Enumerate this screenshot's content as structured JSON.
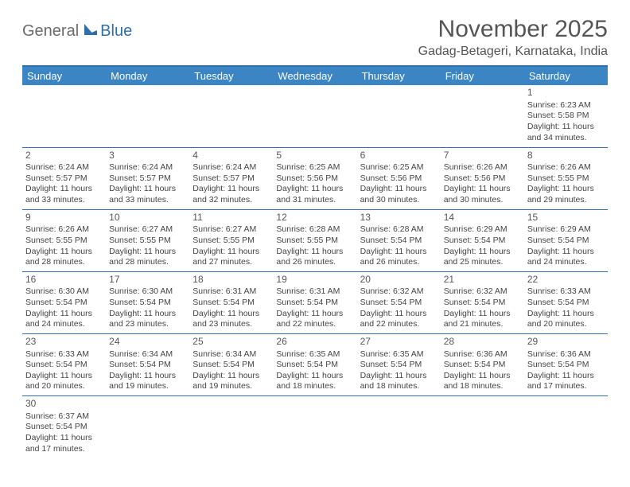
{
  "logo": {
    "part1": "General",
    "part2": "Blue"
  },
  "title": "November 2025",
  "location": "Gadag-Betageri, Karnataka, India",
  "colors": {
    "header_bg": "#3b85c4",
    "border": "#2f6fa8",
    "logo_gray": "#6b6b6b",
    "logo_blue": "#2f6fa8",
    "text": "#444"
  },
  "dayNames": [
    "Sunday",
    "Monday",
    "Tuesday",
    "Wednesday",
    "Thursday",
    "Friday",
    "Saturday"
  ],
  "weeks": [
    [
      null,
      null,
      null,
      null,
      null,
      null,
      {
        "d": "1",
        "sr": "6:23 AM",
        "ss": "5:58 PM",
        "dl": "11 hours and 34 minutes."
      }
    ],
    [
      {
        "d": "2",
        "sr": "6:24 AM",
        "ss": "5:57 PM",
        "dl": "11 hours and 33 minutes."
      },
      {
        "d": "3",
        "sr": "6:24 AM",
        "ss": "5:57 PM",
        "dl": "11 hours and 33 minutes."
      },
      {
        "d": "4",
        "sr": "6:24 AM",
        "ss": "5:57 PM",
        "dl": "11 hours and 32 minutes."
      },
      {
        "d": "5",
        "sr": "6:25 AM",
        "ss": "5:56 PM",
        "dl": "11 hours and 31 minutes."
      },
      {
        "d": "6",
        "sr": "6:25 AM",
        "ss": "5:56 PM",
        "dl": "11 hours and 30 minutes."
      },
      {
        "d": "7",
        "sr": "6:26 AM",
        "ss": "5:56 PM",
        "dl": "11 hours and 30 minutes."
      },
      {
        "d": "8",
        "sr": "6:26 AM",
        "ss": "5:55 PM",
        "dl": "11 hours and 29 minutes."
      }
    ],
    [
      {
        "d": "9",
        "sr": "6:26 AM",
        "ss": "5:55 PM",
        "dl": "11 hours and 28 minutes."
      },
      {
        "d": "10",
        "sr": "6:27 AM",
        "ss": "5:55 PM",
        "dl": "11 hours and 28 minutes."
      },
      {
        "d": "11",
        "sr": "6:27 AM",
        "ss": "5:55 PM",
        "dl": "11 hours and 27 minutes."
      },
      {
        "d": "12",
        "sr": "6:28 AM",
        "ss": "5:55 PM",
        "dl": "11 hours and 26 minutes."
      },
      {
        "d": "13",
        "sr": "6:28 AM",
        "ss": "5:54 PM",
        "dl": "11 hours and 26 minutes."
      },
      {
        "d": "14",
        "sr": "6:29 AM",
        "ss": "5:54 PM",
        "dl": "11 hours and 25 minutes."
      },
      {
        "d": "15",
        "sr": "6:29 AM",
        "ss": "5:54 PM",
        "dl": "11 hours and 24 minutes."
      }
    ],
    [
      {
        "d": "16",
        "sr": "6:30 AM",
        "ss": "5:54 PM",
        "dl": "11 hours and 24 minutes."
      },
      {
        "d": "17",
        "sr": "6:30 AM",
        "ss": "5:54 PM",
        "dl": "11 hours and 23 minutes."
      },
      {
        "d": "18",
        "sr": "6:31 AM",
        "ss": "5:54 PM",
        "dl": "11 hours and 23 minutes."
      },
      {
        "d": "19",
        "sr": "6:31 AM",
        "ss": "5:54 PM",
        "dl": "11 hours and 22 minutes."
      },
      {
        "d": "20",
        "sr": "6:32 AM",
        "ss": "5:54 PM",
        "dl": "11 hours and 22 minutes."
      },
      {
        "d": "21",
        "sr": "6:32 AM",
        "ss": "5:54 PM",
        "dl": "11 hours and 21 minutes."
      },
      {
        "d": "22",
        "sr": "6:33 AM",
        "ss": "5:54 PM",
        "dl": "11 hours and 20 minutes."
      }
    ],
    [
      {
        "d": "23",
        "sr": "6:33 AM",
        "ss": "5:54 PM",
        "dl": "11 hours and 20 minutes."
      },
      {
        "d": "24",
        "sr": "6:34 AM",
        "ss": "5:54 PM",
        "dl": "11 hours and 19 minutes."
      },
      {
        "d": "25",
        "sr": "6:34 AM",
        "ss": "5:54 PM",
        "dl": "11 hours and 19 minutes."
      },
      {
        "d": "26",
        "sr": "6:35 AM",
        "ss": "5:54 PM",
        "dl": "11 hours and 18 minutes."
      },
      {
        "d": "27",
        "sr": "6:35 AM",
        "ss": "5:54 PM",
        "dl": "11 hours and 18 minutes."
      },
      {
        "d": "28",
        "sr": "6:36 AM",
        "ss": "5:54 PM",
        "dl": "11 hours and 18 minutes."
      },
      {
        "d": "29",
        "sr": "6:36 AM",
        "ss": "5:54 PM",
        "dl": "11 hours and 17 minutes."
      }
    ],
    [
      {
        "d": "30",
        "sr": "6:37 AM",
        "ss": "5:54 PM",
        "dl": "11 hours and 17 minutes."
      },
      null,
      null,
      null,
      null,
      null,
      null
    ]
  ],
  "labels": {
    "sunrise": "Sunrise:",
    "sunset": "Sunset:",
    "daylight": "Daylight:"
  }
}
